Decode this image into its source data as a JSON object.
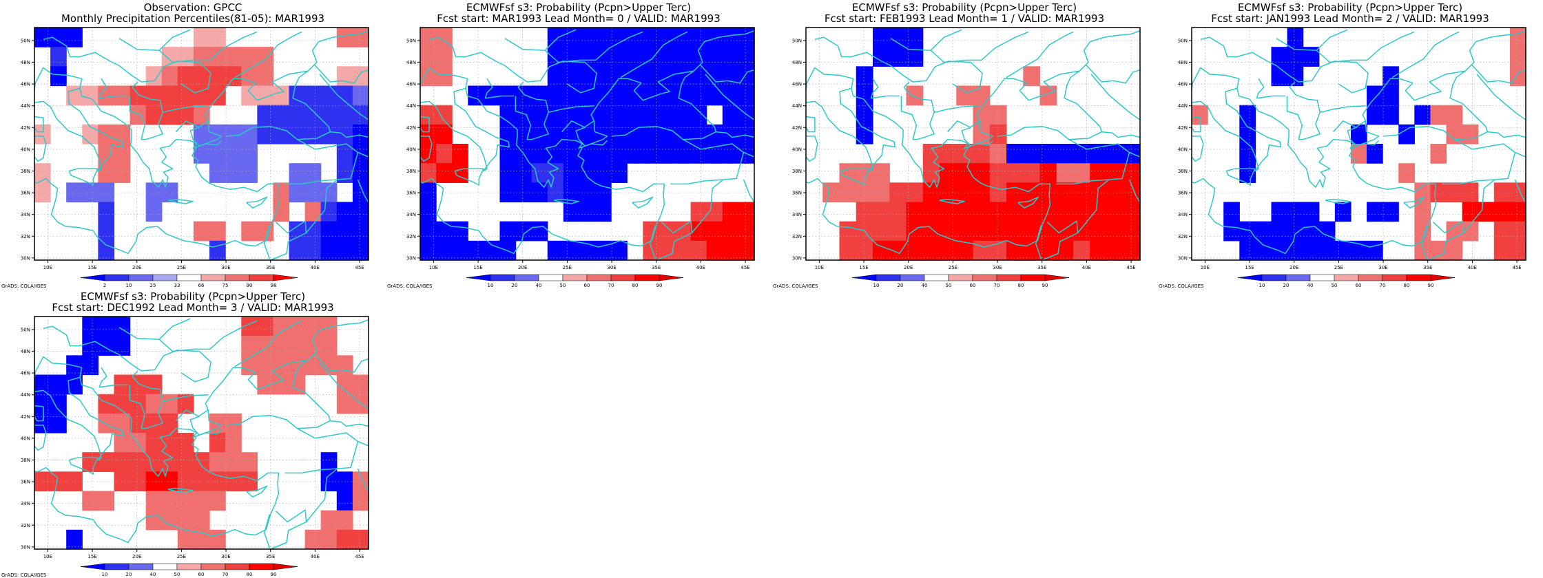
{
  "axes": {
    "lon_labels": [
      "10E",
      "15E",
      "20E",
      "25E",
      "30E",
      "35E",
      "40E",
      "45E"
    ],
    "lat_labels": [
      "30N",
      "32N",
      "34N",
      "36N",
      "38N",
      "40N",
      "42N",
      "44N",
      "46N",
      "48N",
      "50N"
    ]
  },
  "colors": {
    "coastline": "#2ec8c8",
    "grid": "#b0b0b0",
    "frame": "#000000"
  },
  "panels": [
    {
      "title_line1": "Observation: GPCC",
      "title_line2": "Monthly Precipitation Percentiles(81-05): MAR1993",
      "credit": "GrADS: COLA/IGES",
      "colorbar": {
        "labels": [
          "2",
          "10",
          "25",
          "33",
          "66",
          "75",
          "90",
          "98"
        ],
        "colors": [
          "#0000ff",
          "#3030f0",
          "#6868f0",
          "#a8a8f0",
          "#ffffff",
          "#f4a8a8",
          "#f07070",
          "#f04040",
          "#ff0000"
        ]
      },
      "grid": [
        "BBB.......pp.......rr",
        ".b......pprrrrr......",
        ".B.....prRRRRrr....pp",
        "..pprrRRRRRR.pppbbbbl",
        "......rRRRr...bbbbbbb",
        "p..prr....llllbbbbbbB",
        "....rr....llll.....bB",
        "p...rr.....lll..ll.bB",
        "p.lll..ll......rlll.B",
        "....b..l.......r.rbBB",
        "....b.....rr.rr.bbBBB",
        "....b......b....bbBBB"
      ]
    },
    {
      "title_line1": "ECMWFsf s3: Probability (Pcpn>Upper Terc)",
      "title_line2": "Fcst start: MAR1993   Lead Month= 0 / VALID: MAR1993",
      "credit": "GrADS: COLA/IGES",
      "colorbar": {
        "labels": [
          "10",
          "20",
          "40",
          "50",
          "60",
          "70",
          "80",
          "90"
        ],
        "colors": [
          "#0000ff",
          "#3030f0",
          "#6868f0",
          "#ffffff",
          "#f4a8a8",
          "#f07070",
          "#f04040",
          "#ff0000",
          "#e00000"
        ]
      },
      "grid": [
        "pp......BBBBBBBBBBBBB",
        "pp......BBBBBBBBBBBBB",
        "pp......BBBBBBBBBBBBB",
        "...BBBBBBBBBBBBBBBBBB",
        "rr...BBBBBBBBBBBBB.BB",
        "RR...BBBBBBBBBBBBBBBB",
        "RrR..BBBBBBBBBBBBBBBB",
        "rRR..BBbbBBBB........",
        "B....BBBbBBB.........",
        "B........BBB.....rrRR",
        "BBB..BBB......rrrRRRR",
        "BBBBBB..BBBBB.rrrrRRR"
      ]
    },
    {
      "title_line1": "ECMWFsf s3: Probability (Pcpn>Upper Terc)",
      "title_line2": "Fcst start: FEB1993   Lead Month= 1 / VALID: MAR1993",
      "credit": "GrADS: COLA/IGES",
      "colorbar": {
        "labels": [
          "10",
          "20",
          "40",
          "50",
          "60",
          "70",
          "80",
          "90"
        ],
        "colors": [
          "#0000ff",
          "#3030f0",
          "#6868f0",
          "#ffffff",
          "#f4a8a8",
          "#f07070",
          "#f04040",
          "#ff0000",
          "#e00000"
        ]
      },
      "grid": [
        "....BBB.............",
        "....BBB.............",
        "...B.........p.......",
        "...B..p..pp...p......",
        "...B......pp.........",
        "...B......pr.........",
        ".......rrrrpBBBBBBBBB",
        "..ppp..rRRRrrrRppRRRR",
        ".pppprrRRRRrRRRRRRRRR",
        "...rrrRRRRRRRRRRRRRRR",
        "..rrrrRRRRRRRRRRRRRRR",
        "..rrRRRRRRrrRRRRrRRRR"
      ]
    },
    {
      "title_line1": "ECMWFsf s3: Probability (Pcpn>Upper Terc)",
      "title_line2": "Fcst start: JAN1993   Lead Month= 2 / VALID: MAR1993",
      "credit": "GrADS: COLA/IGES",
      "colorbar": {
        "labels": [
          "10",
          "20",
          "40",
          "50",
          "60",
          "70",
          "80",
          "90"
        ],
        "colors": [
          "#0000ff",
          "#3030f0",
          "#6868f0",
          "#ffffff",
          "#f4a8a8",
          "#f07070",
          "#f04040",
          "#ff0000",
          "#e00000"
        ]
      },
      "grid": [
        "......B.............p",
        ".....BBB............p",
        ".....BB.....B.......p",
        "...........BB........",
        "p..B.......BB.Bpp....",
        "...B......B..B..pp...",
        "...B......pB...p.....",
        "...B.........p.......",
        "..............prrr.rr",
        "..B..BBB.B.BB.p..RRRR",
        "..BBBBBBB.....p.pp.rr",
        "...BBBBBBBBB..ppp..rr"
      ]
    },
    {
      "title_line1": "ECMWFsf s3: Probability (Pcpn>Upper Terc)",
      "title_line2": "Fcst start: DEC1992   Lead Month= 3 / VALID: MAR1993",
      "credit": "GrADS: COLA/IGES",
      "colorbar": {
        "labels": [
          "10",
          "20",
          "40",
          "50",
          "60",
          "70",
          "80",
          "90"
        ],
        "colors": [
          "#0000ff",
          "#3030f0",
          "#6868f0",
          "#ffffff",
          "#f4a8a8",
          "#f07070",
          "#f04040",
          "#ff0000",
          "#e00000"
        ]
      },
      "grid": [
        "...BBB.......rrpppp..",
        "...BBB.......pppppp..",
        "..BB.........ppppppp.",
        "BBB..rrr......ppp..pp",
        "BB..rrrppr.........pp",
        "BB..pprrr..pp........",
        ".....pprrr.rp........",
        "...rrrrrrrrppp....B..",
        "rrr..rrRRrrrrr....BBp",
        "...pp..ppppp.......Bp",
        ".......pppp.......pp.",
        "..B......ppp.....pprr"
      ]
    }
  ]
}
